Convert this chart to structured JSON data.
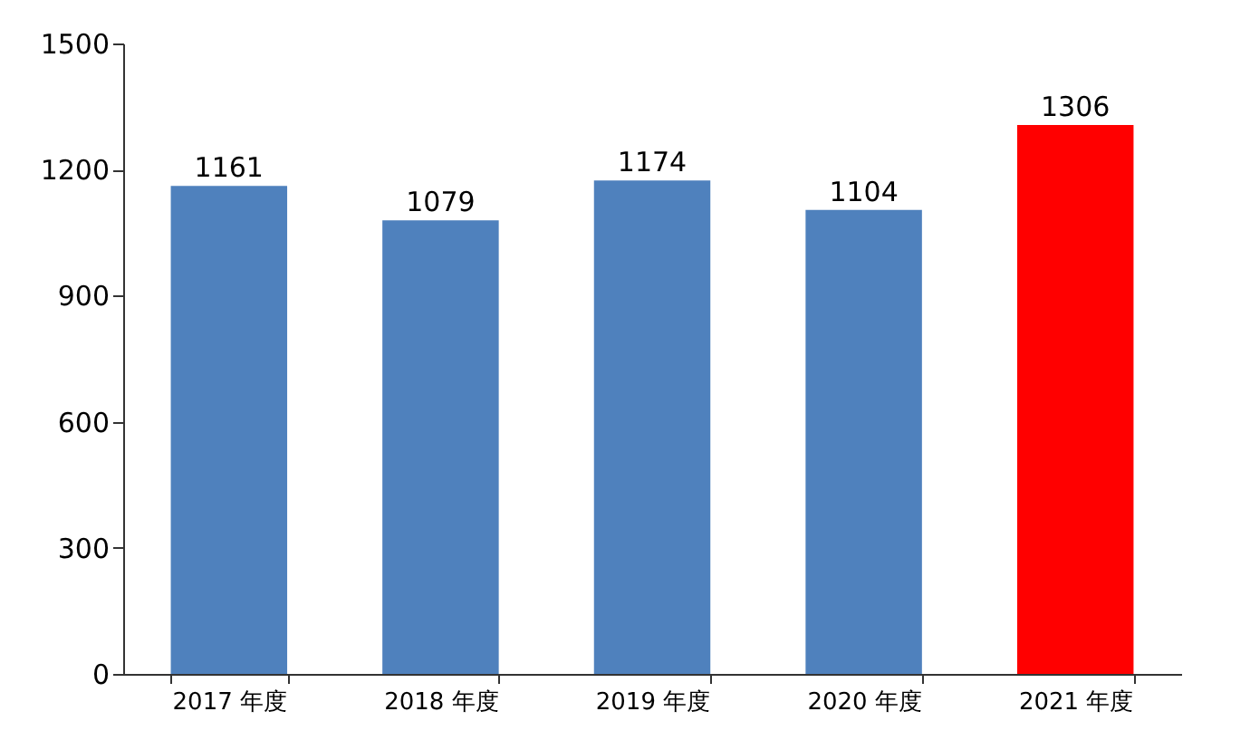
{
  "chart_data": {
    "type": "bar",
    "categories": [
      "2017 年度",
      "2018 年度",
      "2019 年度",
      "2020 年度",
      "2021 年度"
    ],
    "values": [
      1161,
      1079,
      1174,
      1104,
      1306
    ],
    "colors": [
      "#4f81bd",
      "#4f81bd",
      "#4f81bd",
      "#4f81bd",
      "#ff0000"
    ],
    "ylim": [
      0,
      1500
    ],
    "yticks": [
      0,
      300,
      600,
      900,
      1200,
      1500
    ],
    "data_labels": true,
    "grid": false
  }
}
